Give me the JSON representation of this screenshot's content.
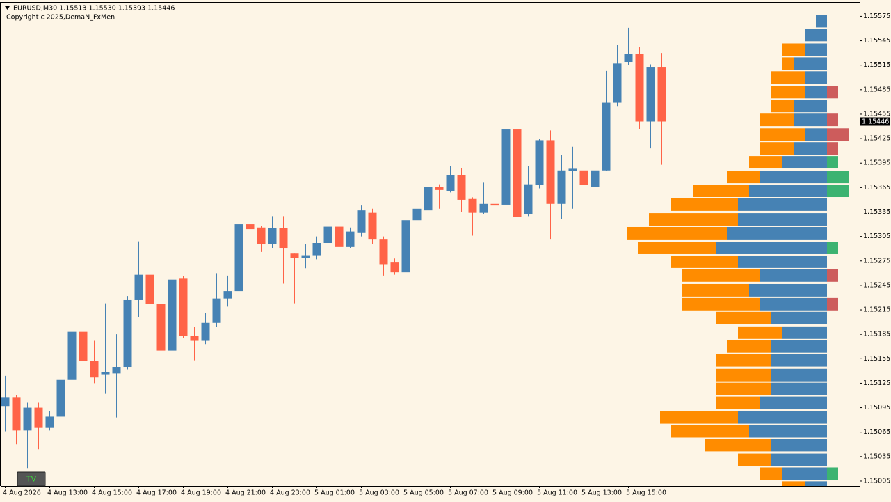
{
  "chart_data": {
    "type": "candlestick",
    "title": "EURUSD,M30  1.15513 1.15530 1.15393 1.15446",
    "subtitle": "Copyright c 2025,DemaN_FxMen",
    "categories": [
      "4 Aug 2026",
      null,
      null,
      null,
      "4 Aug 13:00",
      null,
      null,
      null,
      "4 Aug 15:00",
      null,
      null,
      null,
      "4 Aug 17:00",
      null,
      null,
      null,
      "4 Aug 19:00",
      null,
      null,
      null,
      "4 Aug 21:00",
      null,
      null,
      null,
      "4 Aug 23:00",
      null,
      null,
      null,
      "5 Aug 01:00",
      null,
      null,
      null,
      "5 Aug 03:00",
      null,
      null,
      null,
      "5 Aug 05:00",
      null,
      null,
      null,
      "5 Aug 07:00",
      null,
      null,
      null,
      "5 Aug 09:00",
      null,
      null,
      null,
      "5 Aug 11:00",
      null,
      null,
      null,
      "5 Aug 13:00",
      null,
      null,
      null,
      "5 Aug 15:00",
      null,
      null,
      null
    ],
    "open": [
      1.15097,
      1.15108,
      1.15067,
      1.15095,
      1.15071,
      1.15084,
      1.15129,
      1.15188,
      1.15152,
      1.15136,
      1.15137,
      1.15145,
      1.15227,
      1.15258,
      1.15222,
      1.15165,
      1.15254,
      1.15183,
      1.15177,
      1.15199,
      1.15229,
      1.15238,
      1.1532,
      1.15316,
      1.15296,
      1.15315,
      1.15284,
      1.15279,
      1.15282,
      1.15297,
      1.15317,
      1.15292,
      1.1531,
      1.15334,
      1.15302,
      1.15273,
      1.15261,
      1.15325,
      1.15337,
      1.15366,
      1.15361,
      1.1538,
      1.15351,
      1.15334,
      1.15345,
      1.15344,
      1.15437,
      1.15332,
      1.15368,
      1.15423,
      1.15345,
      1.15385,
      1.15386,
      1.15366,
      1.15386,
      1.15469,
      1.15519,
      1.15529,
      1.15446,
      1.15513
    ],
    "high": [
      1.15134,
      1.1511,
      1.15101,
      1.15101,
      1.15091,
      1.15134,
      1.15189,
      1.15226,
      1.15177,
      1.15223,
      1.15185,
      1.15232,
      1.15299,
      1.15276,
      1.1524,
      1.15258,
      1.15256,
      1.15194,
      1.15211,
      1.1526,
      1.15257,
      1.15328,
      1.15323,
      1.15318,
      1.1533,
      1.1533,
      1.15284,
      1.15296,
      1.15305,
      1.15317,
      1.15321,
      1.15316,
      1.15343,
      1.15339,
      1.15305,
      1.15278,
      1.15342,
      1.15395,
      1.15393,
      1.15369,
      1.15391,
      1.15389,
      1.15353,
      1.15371,
      1.15366,
      1.15448,
      1.15458,
      1.15391,
      1.15425,
      1.15435,
      1.15405,
      1.15415,
      1.154,
      1.15398,
      1.15508,
      1.1554,
      1.15561,
      1.15537,
      1.15516,
      1.1553
    ],
    "low": [
      1.15066,
      1.1505,
      1.15021,
      1.15044,
      1.15067,
      1.15074,
      1.15127,
      1.15148,
      1.15125,
      1.15112,
      1.15083,
      1.15142,
      1.15206,
      1.15178,
      1.15129,
      1.15124,
      1.1518,
      1.15153,
      1.15173,
      1.15194,
      1.15219,
      1.15232,
      1.15311,
      1.15286,
      1.15291,
      1.15247,
      1.15223,
      1.15266,
      1.15277,
      1.15294,
      1.15291,
      1.15291,
      1.15305,
      1.15296,
      1.15257,
      1.15258,
      1.15257,
      1.15322,
      1.15334,
      1.15339,
      1.15359,
      1.15335,
      1.15306,
      1.15332,
      1.15313,
      1.15313,
      1.15328,
      1.1533,
      1.15364,
      1.15302,
      1.15326,
      1.15339,
      1.1534,
      1.15351,
      1.15385,
      1.15465,
      1.15515,
      1.15437,
      1.15413,
      1.15393
    ],
    "close": [
      1.15108,
      1.15067,
      1.15095,
      1.15071,
      1.15084,
      1.15129,
      1.15188,
      1.15152,
      1.15132,
      1.15139,
      1.15145,
      1.15227,
      1.15258,
      1.15222,
      1.15165,
      1.15252,
      1.15183,
      1.15177,
      1.15199,
      1.15229,
      1.15238,
      1.1532,
      1.15314,
      1.15296,
      1.15315,
      1.15291,
      1.15279,
      1.15282,
      1.15297,
      1.15317,
      1.15292,
      1.15311,
      1.15337,
      1.15302,
      1.15271,
      1.15261,
      1.15325,
      1.15339,
      1.15366,
      1.15362,
      1.1538,
      1.1535,
      1.15334,
      1.15345,
      1.15343,
      1.15437,
      1.15329,
      1.15369,
      1.15423,
      1.15345,
      1.15386,
      1.15388,
      1.15368,
      1.15386,
      1.15469,
      1.15517,
      1.15529,
      1.15446,
      1.15513,
      1.15446
    ],
    "bull_color": "#4682b4",
    "bear_color": "#ff6347",
    "ylim": [
      1.14999,
      1.15595
    ],
    "yticks": [
      1.15575,
      1.15545,
      1.15515,
      1.15485,
      1.15455,
      1.15425,
      1.15395,
      1.15365,
      1.15335,
      1.15305,
      1.15275,
      1.15245,
      1.15215,
      1.15185,
      1.15155,
      1.15125,
      1.15095,
      1.15065,
      1.15035,
      1.15005
    ],
    "current_price": 1.15446,
    "profile": {
      "levels": [
        1.15569,
        1.15552,
        1.15534,
        1.15517,
        1.155,
        1.15482,
        1.15465,
        1.15448,
        1.1543,
        1.15413,
        1.15396,
        1.15378,
        1.15361,
        1.15344,
        1.15326,
        1.15309,
        1.15291,
        1.15274,
        1.15257,
        1.15239,
        1.15222,
        1.15205,
        1.15187,
        1.1517,
        1.15153,
        1.15135,
        1.15118,
        1.15101,
        1.15083,
        1.15066,
        1.15049,
        1.15031,
        1.15014,
        1.14997
      ],
      "blue": [
        1,
        2,
        2,
        3,
        2,
        2,
        3,
        3,
        2,
        3,
        4,
        6,
        7,
        8,
        8,
        9,
        10,
        8,
        6,
        7,
        6,
        5,
        4,
        5,
        5,
        5,
        5,
        6,
        8,
        7,
        5,
        5,
        4,
        2
      ],
      "orange": [
        0,
        0,
        2,
        1,
        3,
        3,
        2,
        3,
        4,
        3,
        3,
        3,
        5,
        6,
        8,
        9,
        7,
        6,
        7,
        6,
        7,
        5,
        4,
        4,
        5,
        5,
        5,
        4,
        7,
        7,
        6,
        3,
        2,
        2
      ],
      "delta": [
        0,
        0,
        0,
        0,
        0,
        -1,
        0,
        -1,
        -2,
        -1,
        1,
        2,
        2,
        0,
        0,
        0,
        1,
        0,
        -1,
        0,
        -1,
        0,
        0,
        0,
        0,
        0,
        0,
        0,
        0,
        0,
        0,
        0,
        1,
        0
      ],
      "blue_color": "#4682b4",
      "orange_color": "#ff8c00",
      "delta_up_color": "#3cb371",
      "delta_down_color": "#cd5c5c"
    },
    "button": "TV"
  }
}
